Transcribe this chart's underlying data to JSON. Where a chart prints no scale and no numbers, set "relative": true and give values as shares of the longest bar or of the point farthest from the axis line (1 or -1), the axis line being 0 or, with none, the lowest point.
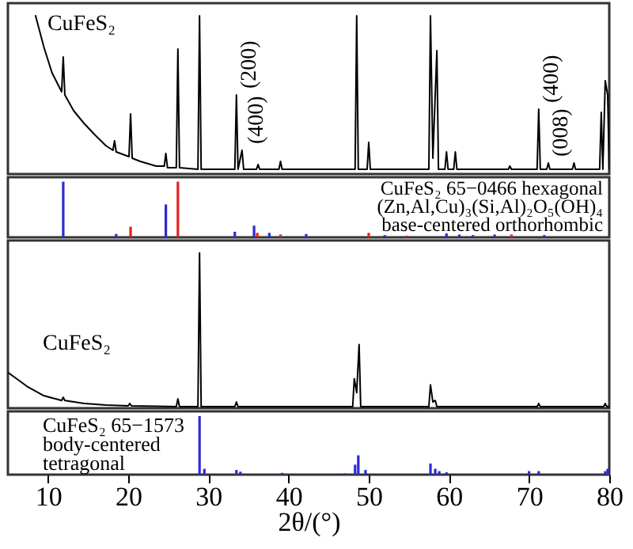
{
  "chart_data": [
    {
      "type": "line",
      "relative": true,
      "xlim": [
        5,
        80
      ],
      "xticks": [
        10,
        20,
        30,
        40,
        50,
        60,
        70,
        80
      ],
      "tick_labels": false,
      "annotations": [
        {
          "text": "CuFeS₂",
          "x": 11.9,
          "y": 0.74
        },
        {
          "text": "(200)",
          "x": 33.5,
          "y": 0.5
        },
        {
          "text": "(400)",
          "x": 34.4,
          "y": 0.15
        },
        {
          "text": "(400)",
          "x": 71.2,
          "y": 0.41
        },
        {
          "text": "(008)",
          "x": 72.4,
          "y": 0.07
        }
      ],
      "series": [
        {
          "color": "#000000",
          "x": [
            8.45,
            9.5,
            10.5,
            11.7,
            11.9,
            12.1,
            13.2,
            14.5,
            15.8,
            17.2,
            18.1,
            18.3,
            18.5,
            20.1,
            20.3,
            20.5,
            21.5,
            23.5,
            24.5,
            24.7,
            24.9,
            26.0,
            26.2,
            26.4,
            28.7,
            28.9,
            29.1,
            33.3,
            33.5,
            33.7,
            34.2,
            34.4,
            36.0,
            36.2,
            36.4,
            38.8,
            39.0,
            39.2,
            48.3,
            48.5,
            48.7,
            49.8,
            50.0,
            50.2,
            57.5,
            57.7,
            58.0,
            58.5,
            58.7,
            59.5,
            59.7,
            59.9,
            60.6,
            60.8,
            61.0,
            67.4,
            67.6,
            67.8,
            71.0,
            71.2,
            71.4,
            72.2,
            72.4,
            72.6,
            75.4,
            75.6,
            75.8,
            78.8,
            79.0,
            79.2,
            79.5,
            79.8,
            80
          ],
          "values": [
            1,
            0.8,
            0.64,
            0.52,
            0.74,
            0.5,
            0.4,
            0.32,
            0.25,
            0.18,
            0.15,
            0.21,
            0.14,
            0.11,
            0.38,
            0.1,
            0.08,
            0.05,
            0.05,
            0.13,
            0.04,
            0.04,
            0.79,
            0.04,
            0.03,
            1,
            0.03,
            0.03,
            0.5,
            0.03,
            0.15,
            0.03,
            0.03,
            0.06,
            0.03,
            0.03,
            0.08,
            0.03,
            0.03,
            1,
            0.03,
            0.03,
            0.2,
            0.03,
            0.03,
            1,
            0.1,
            0.78,
            0.03,
            0.03,
            0.14,
            0.03,
            0.03,
            0.14,
            0.03,
            0.03,
            0.05,
            0.03,
            0.03,
            0.41,
            0.03,
            0.03,
            0.07,
            0.03,
            0.03,
            0.07,
            0.03,
            0.03,
            0.39,
            0.03,
            0.59,
            0.5,
            0.03
          ]
        }
      ]
    },
    {
      "type": "bar",
      "relative": true,
      "xlim": [
        5,
        80
      ],
      "xticks": [
        10,
        20,
        30,
        40,
        50,
        60,
        70,
        80
      ],
      "tick_labels": false,
      "annotations": [
        "CuFeS₂ 65−0466 hexagonal",
        "(Zn,Al,Cu)₃(Si,Al)₂O₅(OH)₄",
        "base-centered orthorhombic"
      ],
      "series": [
        {
          "color": "#2b2bd0",
          "x": [
            11.9,
            18.5,
            24.7,
            33.3,
            35.7,
            37.6,
            42.2,
            52.0,
            59.7,
            61.3,
            63.0,
            65.7,
            71.9
          ],
          "values": [
            1,
            0.06,
            0.59,
            0.1,
            0.21,
            0.08,
            0.06,
            0.04,
            0.07,
            0.05,
            0.04,
            0.05,
            0.04
          ]
        },
        {
          "color": "#e02020",
          "x": [
            20.3,
            26.2,
            36.1,
            39.0,
            50.0,
            54.8,
            67.8
          ],
          "values": [
            0.19,
            1,
            0.08,
            0.05,
            0.08,
            0.03,
            0.05
          ]
        }
      ]
    },
    {
      "type": "line",
      "relative": true,
      "xlim": [
        5,
        80
      ],
      "xticks": [
        10,
        20,
        30,
        40,
        50,
        60,
        70,
        80
      ],
      "tick_labels": false,
      "annotations": [
        "CuFeS₂"
      ],
      "series": [
        {
          "color": "#000000",
          "x": [
            5,
            7.4,
            9.5,
            11.7,
            11.9,
            12.1,
            14.5,
            17.2,
            20.0,
            20.2,
            20.4,
            26.0,
            26.2,
            26.4,
            28.7,
            28.9,
            29.1,
            33.3,
            33.5,
            33.7,
            48.0,
            48.2,
            48.5,
            48.8,
            49.0,
            57.5,
            57.7,
            58.0,
            58.3,
            58.5,
            71.0,
            71.2,
            71.4,
            79.3,
            79.5,
            79.7,
            80
          ],
          "values": [
            0.23,
            0.14,
            0.08,
            0.05,
            0.07,
            0.05,
            0.03,
            0.02,
            0.015,
            0.03,
            0.015,
            0.01,
            0.06,
            0.01,
            0.01,
            1,
            0.01,
            0.01,
            0.04,
            0.01,
            0.01,
            0.19,
            0.1,
            0.41,
            0.01,
            0.01,
            0.15,
            0.04,
            0.05,
            0.01,
            0.01,
            0.03,
            0.01,
            0.01,
            0.03,
            0.01,
            0.01
          ]
        }
      ]
    },
    {
      "type": "bar",
      "relative": true,
      "xlim": [
        5,
        80
      ],
      "xticks": [
        10,
        20,
        30,
        40,
        50,
        60,
        70,
        80
      ],
      "tick_labels": "x",
      "xlabel": "2θ/(°)",
      "annotations": [
        "CuFeS₂ 65−1573",
        "body-centered",
        "tetragonal"
      ],
      "series": [
        {
          "color": "#2b2bd0",
          "x": [
            28.9,
            29.5,
            33.5,
            34.0,
            39.2,
            47.0,
            48.3,
            48.7,
            49.6,
            57.7,
            58.3,
            58.8,
            59.7,
            70.0,
            71.2,
            79.5,
            79.8
          ],
          "values": [
            1,
            0.1,
            0.08,
            0.05,
            0.03,
            0.02,
            0.17,
            0.33,
            0.08,
            0.19,
            0.1,
            0.06,
            0.04,
            0.06,
            0.06,
            0.06,
            0.1
          ]
        }
      ]
    }
  ]
}
